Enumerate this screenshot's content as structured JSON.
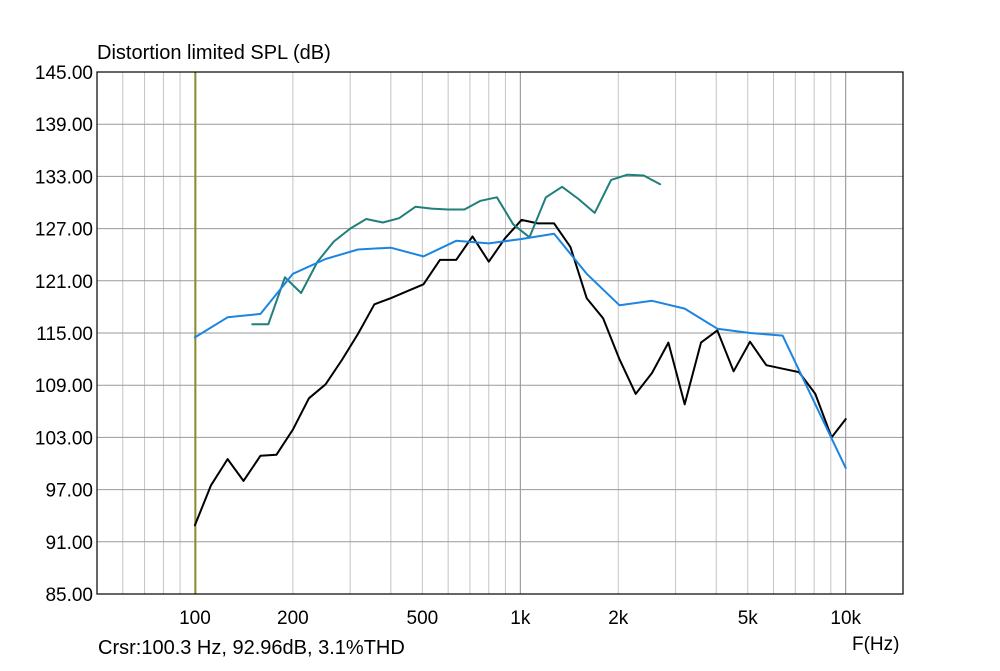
{
  "chart_data": {
    "type": "line",
    "title": "Distortion limited SPL (dB)",
    "xlabel": "F(Hz)",
    "ylabel": "",
    "x_scale": "log",
    "xlim": [
      50,
      15000
    ],
    "ylim": [
      85,
      145
    ],
    "grid": true,
    "y_ticks": [
      "145.00",
      "139.00",
      "133.00",
      "127.00",
      "121.00",
      "115.00",
      "109.00",
      "103.00",
      "97.00",
      "91.00",
      "85.00"
    ],
    "x_ticks": [
      {
        "value": 100,
        "label": "100"
      },
      {
        "value": 200,
        "label": "200"
      },
      {
        "value": 500,
        "label": "500"
      },
      {
        "value": 1000,
        "label": "1k"
      },
      {
        "value": 2000,
        "label": "2k"
      },
      {
        "value": 5000,
        "label": "5k"
      },
      {
        "value": 10000,
        "label": "10k"
      }
    ],
    "cursor": {
      "frequency": 100.3,
      "readout": "Crsr:100.3 Hz, 92.96dB, 3.1%THD",
      "color": "#8b8a2c"
    },
    "series": [
      {
        "color": "#000000",
        "points": [
          [
            100,
            92.9
          ],
          [
            112,
            97.5
          ],
          [
            126,
            100.5
          ],
          [
            141,
            98.0
          ],
          [
            159,
            100.9
          ],
          [
            178,
            101.0
          ],
          [
            200,
            103.9
          ],
          [
            224,
            107.5
          ],
          [
            252,
            109.1
          ],
          [
            283,
            111.9
          ],
          [
            317,
            114.9
          ],
          [
            356,
            118.3
          ],
          [
            400,
            119.0
          ],
          [
            449,
            119.8
          ],
          [
            504,
            120.6
          ],
          [
            566,
            123.4
          ],
          [
            635,
            123.4
          ],
          [
            713,
            126.1
          ],
          [
            800,
            123.2
          ],
          [
            898,
            125.9
          ],
          [
            1008,
            128.0
          ],
          [
            1131,
            127.6
          ],
          [
            1270,
            127.6
          ],
          [
            1425,
            124.9
          ],
          [
            1600,
            119.0
          ],
          [
            1796,
            116.7
          ],
          [
            2016,
            112.0
          ],
          [
            2262,
            108.0
          ],
          [
            2540,
            110.4
          ],
          [
            2851,
            113.9
          ],
          [
            3200,
            106.8
          ],
          [
            3592,
            113.9
          ],
          [
            4032,
            115.3
          ],
          [
            4525,
            110.6
          ],
          [
            5080,
            114.0
          ],
          [
            5702,
            111.3
          ],
          [
            6400,
            110.9
          ],
          [
            7184,
            110.5
          ],
          [
            8064,
            108.0
          ],
          [
            9051,
            103.0
          ],
          [
            10000,
            105.1
          ]
        ]
      },
      {
        "color": "#1f7f7a",
        "points": [
          [
            150,
            116.0
          ],
          [
            168,
            116.0
          ],
          [
            189,
            121.4
          ],
          [
            212,
            119.6
          ],
          [
            238,
            123.2
          ],
          [
            267,
            125.5
          ],
          [
            300,
            127.0
          ],
          [
            336,
            128.1
          ],
          [
            378,
            127.7
          ],
          [
            424,
            128.2
          ],
          [
            476,
            129.5
          ],
          [
            534,
            129.3
          ],
          [
            599,
            129.2
          ],
          [
            673,
            129.2
          ],
          [
            755,
            130.2
          ],
          [
            847,
            130.6
          ],
          [
            951,
            127.5
          ],
          [
            1067,
            126.0
          ],
          [
            1198,
            130.6
          ],
          [
            1344,
            131.8
          ],
          [
            1509,
            130.4
          ],
          [
            1693,
            128.8
          ],
          [
            1901,
            132.6
          ],
          [
            2133,
            133.2
          ],
          [
            2394,
            133.1
          ],
          [
            2688,
            132.1
          ]
        ]
      },
      {
        "color": "#1b85e0",
        "points": [
          [
            100,
            114.5
          ],
          [
            126,
            116.8
          ],
          [
            159,
            117.2
          ],
          [
            200,
            121.8
          ],
          [
            252,
            123.5
          ],
          [
            317,
            124.6
          ],
          [
            400,
            124.8
          ],
          [
            504,
            123.8
          ],
          [
            635,
            125.6
          ],
          [
            800,
            125.3
          ],
          [
            1008,
            125.8
          ],
          [
            1270,
            126.4
          ],
          [
            1600,
            121.8
          ],
          [
            2016,
            118.2
          ],
          [
            2540,
            118.7
          ],
          [
            3200,
            117.8
          ],
          [
            4032,
            115.5
          ],
          [
            5080,
            115.0
          ],
          [
            6400,
            114.7
          ],
          [
            8064,
            106.8
          ],
          [
            10000,
            99.5
          ]
        ]
      }
    ]
  }
}
